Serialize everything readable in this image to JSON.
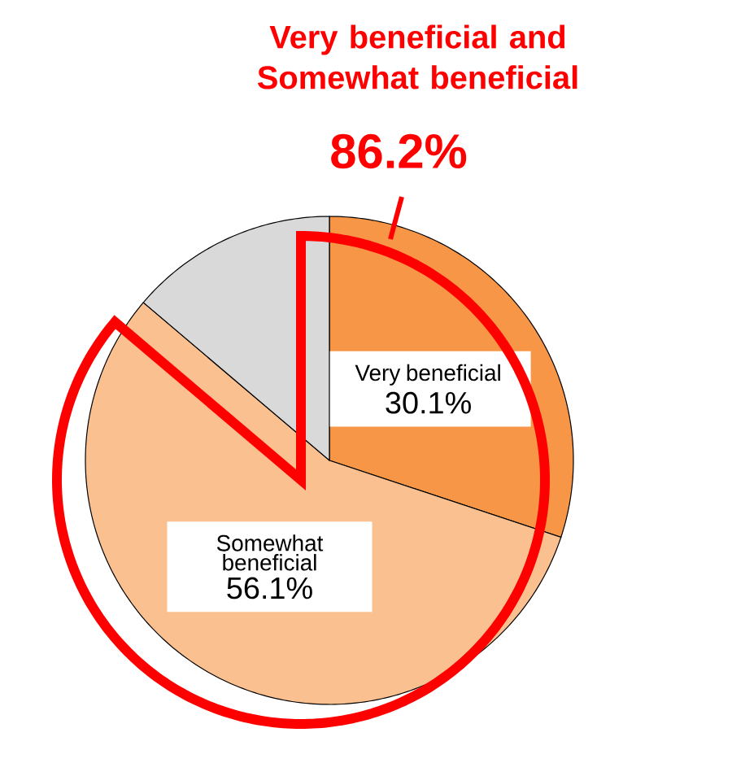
{
  "chart_data": {
    "type": "pie",
    "title": "Very beneficial and Somewhat beneficial",
    "annotations": [
      "86.2%"
    ],
    "categories": [
      "Very beneficial",
      "Somewhat beneficial",
      null
    ],
    "values": [
      30.1,
      56.1,
      13.8
    ],
    "value_labels": [
      "30.1%",
      "56.1%",
      null
    ],
    "colors": [
      "#f79646",
      "#fac08f",
      "#d9d9d9"
    ]
  }
}
